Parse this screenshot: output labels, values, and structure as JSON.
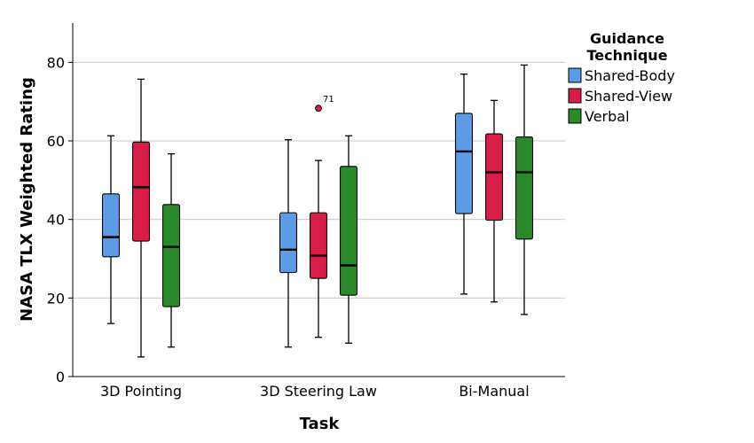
{
  "chart_data": {
    "type": "boxplot",
    "xlabel": "Task",
    "ylabel": "NASA TLX Weighted Rating",
    "ylim": [
      0,
      90
    ],
    "yticks": [
      0,
      20,
      40,
      60,
      80
    ],
    "grid": true,
    "legend": {
      "title_line1": "Guidance",
      "title_line2": "Technique",
      "placement": "right"
    },
    "categories": [
      "3D Pointing",
      "3D Steering Law",
      "Bi-Manual"
    ],
    "series": [
      {
        "name": "Shared-Body",
        "color": "#5b9be6",
        "boxes": [
          {
            "min": 13.5,
            "q1": 30.5,
            "median": 35.5,
            "q3": 46.5,
            "max": 61.3
          },
          {
            "min": 7.5,
            "q1": 26.5,
            "median": 32.3,
            "q3": 41.7,
            "max": 60.3
          },
          {
            "min": 21.0,
            "q1": 41.5,
            "median": 57.3,
            "q3": 67.0,
            "max": 77.0
          }
        ]
      },
      {
        "name": "Shared-View",
        "color": "#d81e48",
        "boxes": [
          {
            "min": 5.0,
            "q1": 34.5,
            "median": 48.2,
            "q3": 59.7,
            "max": 75.7
          },
          {
            "min": 10.0,
            "q1": 25.0,
            "median": 30.8,
            "q3": 41.7,
            "max": 55.0
          },
          {
            "min": 19.0,
            "q1": 39.8,
            "median": 52.0,
            "q3": 61.8,
            "max": 70.3
          }
        ]
      },
      {
        "name": "Verbal",
        "color": "#2a8a2a",
        "boxes": [
          {
            "min": 7.5,
            "q1": 17.8,
            "median": 33.0,
            "q3": 43.8,
            "max": 56.7
          },
          {
            "min": 8.5,
            "q1": 20.7,
            "median": 28.3,
            "q3": 53.5,
            "max": 61.3
          },
          {
            "min": 15.8,
            "q1": 35.0,
            "median": 52.0,
            "q3": 61.0,
            "max": 79.3
          }
        ]
      }
    ],
    "outliers": [
      {
        "category_index": 1,
        "series_index": 1,
        "value": 68.3,
        "label": "71"
      }
    ]
  }
}
